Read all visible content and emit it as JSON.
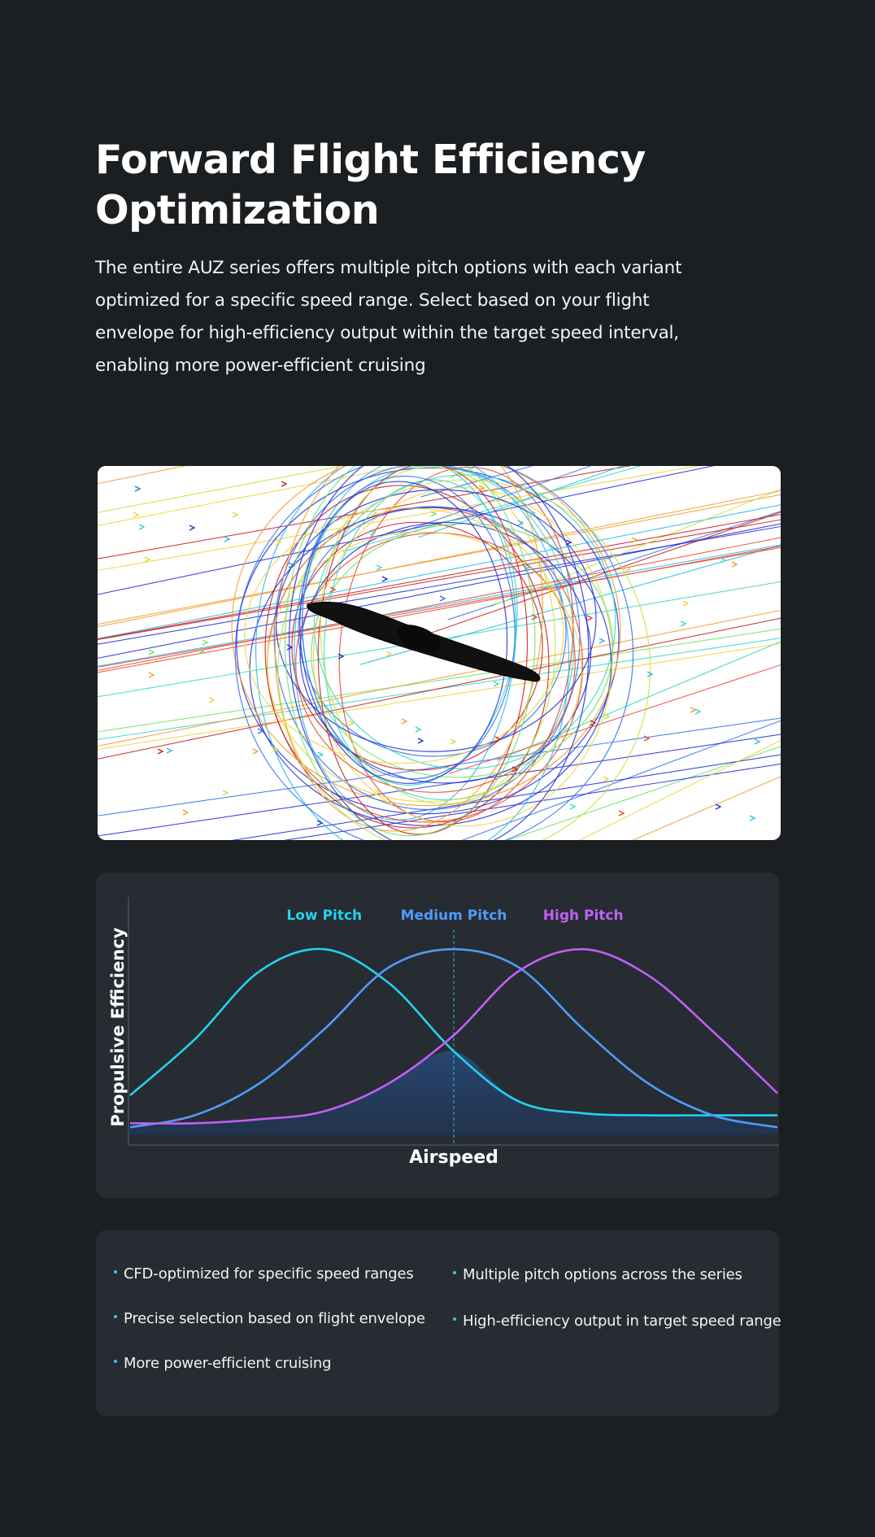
{
  "header": {
    "title_line1": "Forward Flight Efficiency",
    "title_line2": "Optimization",
    "description": "The entire AUZ series offers multiple pitch options with each variant optimized for a specific speed range. Select based on your flight envelope for high-efficiency output within the target speed interval, enabling more power-efficient cruising"
  },
  "chart_data": {
    "type": "line",
    "xlabel": "Airspeed",
    "ylabel": "Propulsive Efficiency",
    "x_range": [
      0,
      1
    ],
    "y_range": [
      0,
      1
    ],
    "grid": false,
    "reference_x": 0.5,
    "series": [
      {
        "name": "Low Pitch",
        "color": "#22d3ee",
        "peak_x": 0.3,
        "peak_y": 0.93,
        "x": [
          0.0,
          0.1,
          0.2,
          0.3,
          0.4,
          0.5,
          0.6,
          0.7,
          0.8,
          0.9,
          1.0
        ],
        "y": [
          0.2,
          0.48,
          0.82,
          0.93,
          0.76,
          0.42,
          0.17,
          0.11,
          0.1,
          0.1,
          0.1
        ]
      },
      {
        "name": "Medium Pitch",
        "color": "#4f9cf9",
        "peak_x": 0.5,
        "peak_y": 0.93,
        "x": [
          0.0,
          0.1,
          0.2,
          0.3,
          0.4,
          0.5,
          0.6,
          0.7,
          0.8,
          0.9,
          1.0
        ],
        "y": [
          0.04,
          0.1,
          0.26,
          0.53,
          0.84,
          0.93,
          0.84,
          0.53,
          0.26,
          0.1,
          0.04
        ]
      },
      {
        "name": "High Pitch",
        "color": "#c060f7",
        "peak_x": 0.7,
        "peak_y": 0.93,
        "x": [
          0.0,
          0.1,
          0.2,
          0.3,
          0.4,
          0.5,
          0.6,
          0.7,
          0.8,
          0.9,
          1.0
        ],
        "y": [
          0.06,
          0.06,
          0.08,
          0.12,
          0.26,
          0.5,
          0.82,
          0.93,
          0.8,
          0.52,
          0.21
        ]
      }
    ]
  },
  "features": {
    "left": [
      "CFD-optimized for specific speed ranges",
      "Precise selection based on flight envelope",
      "More power-efficient cruising"
    ],
    "right": [
      "Multiple pitch options across the series",
      "High-efficiency output in target speed range"
    ],
    "bullet_color": "#22d3ee"
  },
  "colors": {
    "page_bg": "#1c1f22",
    "card_bg": "#272b32",
    "text": "#ffffff"
  }
}
